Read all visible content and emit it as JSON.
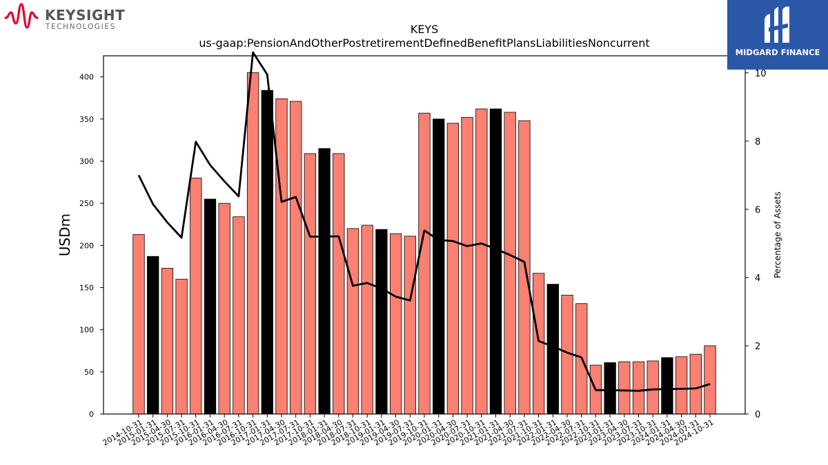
{
  "branding": {
    "company_name": "KEYSIGHT",
    "company_sub": "TECHNOLOGIES",
    "company_color": "#e4002b",
    "watermark_name": "MIDGARD FINANCE",
    "watermark_bg": "#2b57a8"
  },
  "chart_data": {
    "type": "bar",
    "title": "KEYS",
    "subtitle": "us-gaap:PensionAndOtherPostretirementDefinedBenefitPlansLiabilitiesNoncurrent",
    "ylabel": "USDm",
    "y2label": "Percentage of Assets",
    "ylim": [
      0,
      425
    ],
    "y2lim": [
      0,
      10.5
    ],
    "yticks": [
      0,
      50,
      100,
      150,
      200,
      250,
      300,
      350,
      400
    ],
    "y2ticks": [
      0,
      2,
      4,
      6,
      8,
      10
    ],
    "grid": false,
    "categories": [
      "2014-10-31",
      "2015-01-31",
      "2015-04-30",
      "2015-07-31",
      "2015-10-31",
      "2016-01-31",
      "2016-04-30",
      "2016-07-31",
      "2016-10-31",
      "2017-01-31",
      "2017-04-30",
      "2017-07-31",
      "2017-10-31",
      "2018-01-31",
      "2018-04-30",
      "2018-07-31",
      "2018-10-31",
      "2019-01-31",
      "2019-04-30",
      "2019-07-31",
      "2019-10-31",
      "2020-01-31",
      "2020-04-30",
      "2020-07-31",
      "2020-10-31",
      "2021-01-31",
      "2021-04-30",
      "2021-07-31",
      "2021-10-31",
      "2022-01-31",
      "2022-04-30",
      "2022-07-31",
      "2022-10-31",
      "2023-01-31",
      "2023-04-30",
      "2023-07-31",
      "2023-10-31",
      "2024-01-31",
      "2024-04-30",
      "2024-07-31",
      "2024-10-31"
    ],
    "series": [
      {
        "type": "bar",
        "values": [
          213,
          187,
          173,
          160,
          280,
          255,
          250,
          234,
          405,
          384,
          374,
          371,
          309,
          315,
          309,
          220,
          224,
          219,
          214,
          211,
          357,
          350,
          345,
          352,
          362,
          362,
          358,
          348,
          167,
          154,
          141,
          131,
          58,
          61,
          62,
          62,
          63,
          67,
          68,
          71,
          81
        ],
        "colors": [
          "#fa8072",
          "#000000",
          "#fa8072",
          "#fa8072",
          "#fa8072",
          "#000000",
          "#fa8072",
          "#fa8072",
          "#fa8072",
          "#000000",
          "#fa8072",
          "#fa8072",
          "#fa8072",
          "#000000",
          "#fa8072",
          "#fa8072",
          "#fa8072",
          "#000000",
          "#fa8072",
          "#fa8072",
          "#fa8072",
          "#000000",
          "#fa8072",
          "#fa8072",
          "#fa8072",
          "#000000",
          "#fa8072",
          "#fa8072",
          "#fa8072",
          "#000000",
          "#fa8072",
          "#fa8072",
          "#fa8072",
          "#000000",
          "#fa8072",
          "#fa8072",
          "#fa8072",
          "#000000",
          "#fa8072",
          "#fa8072",
          "#fa8072"
        ]
      },
      {
        "type": "line",
        "axis": "right",
        "color": "#000000",
        "values": [
          7.0,
          6.15,
          5.62,
          5.17,
          7.98,
          7.3,
          6.82,
          6.38,
          10.6,
          9.95,
          6.22,
          6.36,
          5.2,
          5.2,
          5.21,
          3.76,
          3.84,
          3.68,
          3.44,
          3.33,
          5.38,
          5.1,
          5.07,
          4.92,
          5.0,
          4.84,
          4.66,
          4.46,
          2.14,
          1.98,
          1.8,
          1.66,
          0.7,
          0.7,
          0.69,
          0.68,
          0.72,
          0.73,
          0.74,
          0.75,
          0.88
        ]
      }
    ]
  }
}
